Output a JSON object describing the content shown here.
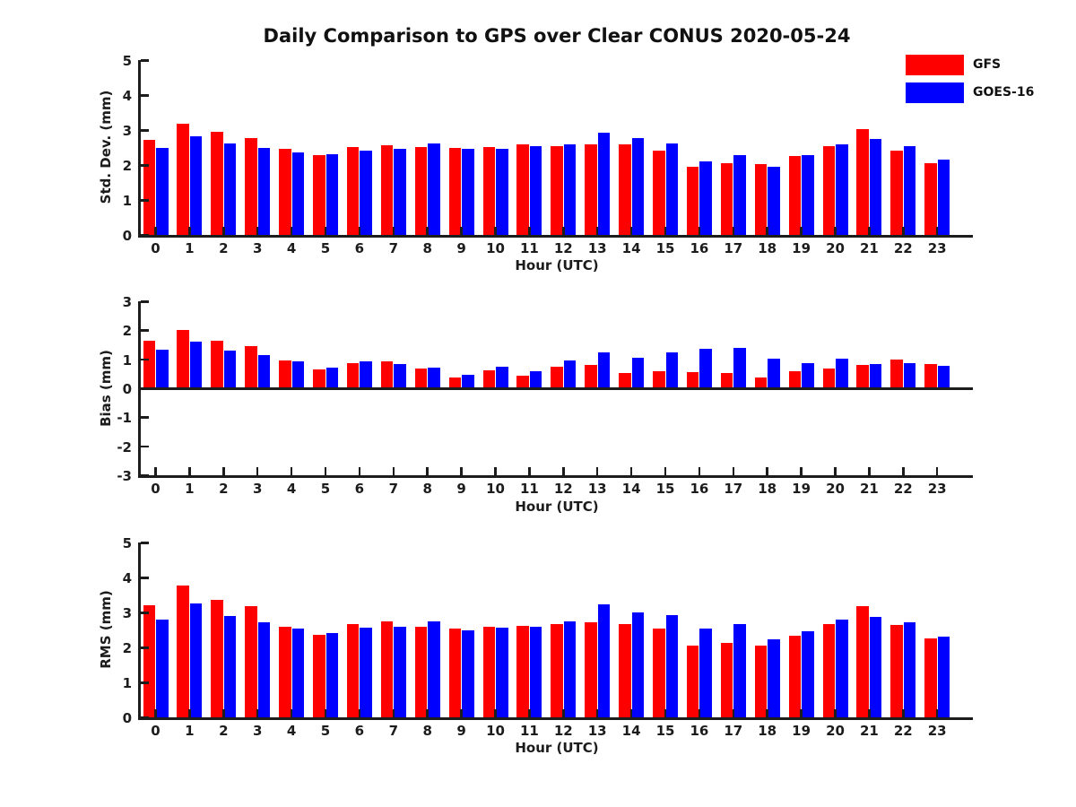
{
  "title": "Daily Comparison to GPS over Clear CONUS 2020-05-24",
  "legend": {
    "items": [
      {
        "label": "GFS",
        "color": "#ff0000"
      },
      {
        "label": "GOES-16",
        "color": "#0000ff"
      }
    ]
  },
  "colors": {
    "gfs": "#ff0000",
    "goes16": "#0000ff",
    "axis": "#1c1c1c"
  },
  "chart_data": [
    {
      "type": "bar",
      "ylabel": "Std. Dev. (mm)",
      "xlabel": "Hour (UTC)",
      "ylim": [
        0,
        5
      ],
      "yticks": [
        0,
        1,
        2,
        3,
        4,
        5
      ],
      "categories": [
        "0",
        "1",
        "2",
        "3",
        "4",
        "5",
        "6",
        "7",
        "8",
        "9",
        "10",
        "11",
        "12",
        "13",
        "14",
        "15",
        "16",
        "17",
        "18",
        "19",
        "20",
        "21",
        "22",
        "23"
      ],
      "legend_position": "outside-top-right",
      "grid": false,
      "series": [
        {
          "name": "GFS",
          "color": "#ff0000",
          "values": [
            2.72,
            3.17,
            2.95,
            2.78,
            2.45,
            2.28,
            2.52,
            2.57,
            2.52,
            2.49,
            2.52,
            2.59,
            2.55,
            2.58,
            2.58,
            2.41,
            1.95,
            2.06,
            2.03,
            2.26,
            2.54,
            3.03,
            2.41,
            2.06
          ]
        },
        {
          "name": "GOES-16",
          "color": "#0000ff",
          "values": [
            2.5,
            2.83,
            2.62,
            2.48,
            2.37,
            2.32,
            2.4,
            2.45,
            2.62,
            2.47,
            2.47,
            2.53,
            2.59,
            2.92,
            2.77,
            2.62,
            2.11,
            2.28,
            1.95,
            2.27,
            2.59,
            2.74,
            2.54,
            2.16
          ]
        }
      ]
    },
    {
      "type": "bar",
      "ylabel": "Bias (mm)",
      "xlabel": "Hour (UTC)",
      "ylim": [
        -3,
        3
      ],
      "yticks": [
        -3,
        -2,
        -1,
        0,
        1,
        2,
        3
      ],
      "categories": [
        "0",
        "1",
        "2",
        "3",
        "4",
        "5",
        "6",
        "7",
        "8",
        "9",
        "10",
        "11",
        "12",
        "13",
        "14",
        "15",
        "16",
        "17",
        "18",
        "19",
        "20",
        "21",
        "22",
        "23"
      ],
      "grid": false,
      "series": [
        {
          "name": "GFS",
          "color": "#ff0000",
          "values": [
            1.65,
            2.0,
            1.65,
            1.45,
            0.95,
            0.65,
            0.88,
            0.92,
            0.68,
            0.38,
            0.63,
            0.42,
            0.75,
            0.8,
            0.52,
            0.6,
            0.57,
            0.54,
            0.38,
            0.6,
            0.69,
            0.81,
            1.0,
            0.85
          ]
        },
        {
          "name": "GOES-16",
          "color": "#0000ff",
          "values": [
            1.32,
            1.62,
            1.3,
            1.15,
            0.93,
            0.7,
            0.92,
            0.85,
            0.72,
            0.45,
            0.75,
            0.58,
            0.97,
            1.25,
            1.05,
            1.25,
            1.35,
            1.38,
            1.02,
            0.88,
            1.02,
            0.83,
            0.88,
            0.78
          ]
        }
      ]
    },
    {
      "type": "bar",
      "ylabel": "RMS (mm)",
      "xlabel": "Hour (UTC)",
      "ylim": [
        0,
        5
      ],
      "yticks": [
        0,
        1,
        2,
        3,
        4,
        5
      ],
      "categories": [
        "0",
        "1",
        "2",
        "3",
        "4",
        "5",
        "6",
        "7",
        "8",
        "9",
        "10",
        "11",
        "12",
        "13",
        "14",
        "15",
        "16",
        "17",
        "18",
        "19",
        "20",
        "21",
        "22",
        "23"
      ],
      "grid": false,
      "series": [
        {
          "name": "GFS",
          "color": "#ff0000",
          "values": [
            3.21,
            3.78,
            3.37,
            3.17,
            2.6,
            2.35,
            2.67,
            2.74,
            2.6,
            2.53,
            2.58,
            2.61,
            2.67,
            2.72,
            2.67,
            2.53,
            2.06,
            2.14,
            2.06,
            2.34,
            2.66,
            3.19,
            2.63,
            2.26
          ]
        },
        {
          "name": "GOES-16",
          "color": "#0000ff",
          "values": [
            2.8,
            3.26,
            2.89,
            2.73,
            2.53,
            2.4,
            2.57,
            2.59,
            2.74,
            2.5,
            2.56,
            2.58,
            2.75,
            3.22,
            3.01,
            2.92,
            2.53,
            2.66,
            2.22,
            2.46,
            2.8,
            2.87,
            2.72,
            2.32
          ]
        }
      ]
    }
  ]
}
